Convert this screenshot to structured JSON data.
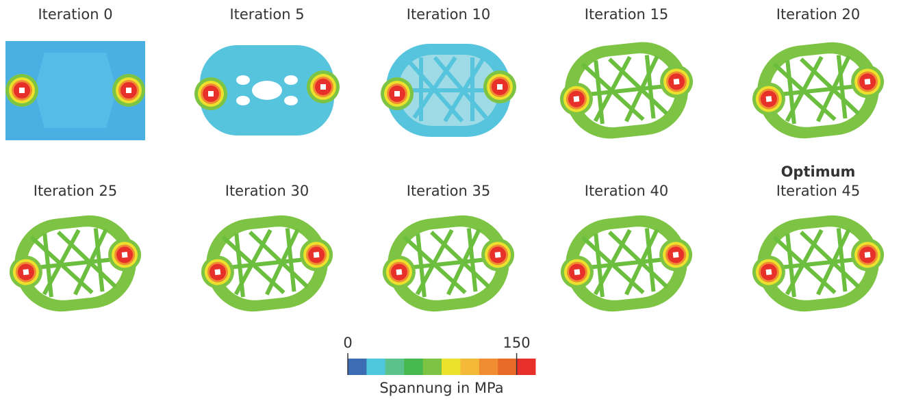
{
  "panels": [
    {
      "label": "Iteration 0"
    },
    {
      "label": "Iteration 5"
    },
    {
      "label": "Iteration 10"
    },
    {
      "label": "Iteration 15"
    },
    {
      "label": "Iteration 20"
    },
    {
      "label": "Iteration 25"
    },
    {
      "label": "Iteration 30"
    },
    {
      "label": "Iteration 35"
    },
    {
      "label": "Iteration 40"
    },
    {
      "label": "Iteration 45",
      "note": "Optimum"
    }
  ],
  "colorbar": {
    "ticks": [
      0,
      150
    ],
    "label": "Spannung in MPa",
    "colors": [
      "#3c6cb4",
      "#4fc6dc",
      "#5cc28c",
      "#46b84e",
      "#7ec444",
      "#ece12c",
      "#f5b93a",
      "#f08c32",
      "#ea6a2a",
      "#e8302a"
    ]
  }
}
